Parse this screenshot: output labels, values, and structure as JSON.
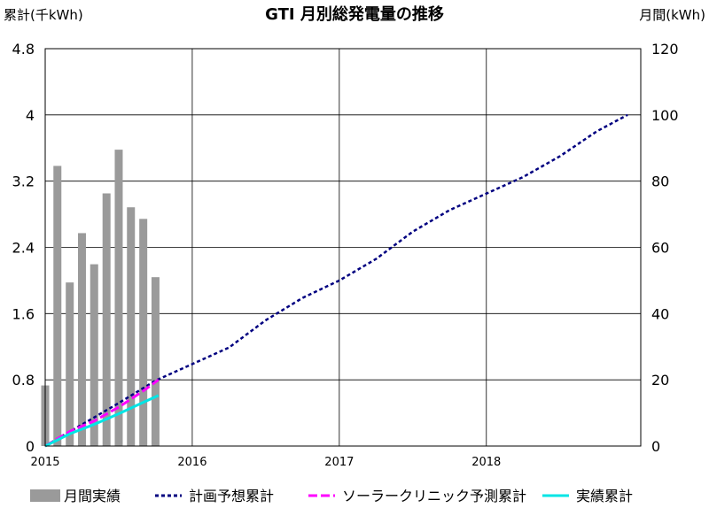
{
  "chart_data": {
    "type": "bar+line",
    "title": "GTI 月別総発電量の推移",
    "y_left_label": "累計(千kWh)",
    "y_right_label": "月間(kWh)",
    "x_ticks": [
      "2015",
      "2016",
      "2017",
      "2018"
    ],
    "x_range": [
      2015.0,
      2019.05
    ],
    "y_left_range": [
      0,
      4.8
    ],
    "y_right_range": [
      0,
      120
    ],
    "y_left_ticks": [
      "0",
      "0.8",
      "1.6",
      "2.4",
      "3.2",
      "4",
      "4.8"
    ],
    "y_right_ticks": [
      "0",
      "20",
      "40",
      "60",
      "80",
      "100",
      "120"
    ],
    "monthly_bars": {
      "name": "月間実績",
      "axis": "right",
      "x": [
        2015.0,
        2015.083,
        2015.167,
        2015.25,
        2015.333,
        2015.417,
        2015.5,
        2015.583,
        2015.667,
        2015.75
      ],
      "values": [
        18.3,
        84.6,
        49.4,
        64.3,
        54.9,
        76.3,
        89.5,
        72.1,
        68.6,
        51.0
      ]
    },
    "series": [
      {
        "name": "計画予想累計",
        "axis": "left",
        "color": "#000080",
        "style": "dotted",
        "x": [
          2015.0,
          2015.25,
          2015.5,
          2015.75,
          2016.0,
          2016.25,
          2016.5,
          2016.75,
          2017.0,
          2017.25,
          2017.5,
          2017.75,
          2018.0,
          2018.25,
          2018.5,
          2018.75,
          2018.96
        ],
        "y": [
          0.0,
          0.26,
          0.52,
          0.79,
          0.99,
          1.19,
          1.52,
          1.79,
          2.0,
          2.26,
          2.59,
          2.85,
          3.05,
          3.25,
          3.5,
          3.8,
          4.0
        ]
      },
      {
        "name": "ソーラークリニック予測累計",
        "axis": "left",
        "color": "#ff00ff",
        "style": "dashed",
        "x": [
          2015.0,
          2015.17,
          2015.33,
          2015.5,
          2015.67,
          2015.77
        ],
        "y": [
          0.0,
          0.18,
          0.3,
          0.47,
          0.67,
          0.8
        ]
      },
      {
        "name": "実績累計",
        "axis": "left",
        "color": "#00e5e5",
        "style": "solid",
        "x": [
          2015.0,
          2015.17,
          2015.33,
          2015.5,
          2015.67,
          2015.77
        ],
        "y": [
          0.0,
          0.15,
          0.26,
          0.39,
          0.53,
          0.61
        ]
      }
    ],
    "legend": [
      "月間実績",
      "計画予想累計",
      "ソーラークリニック予測累計",
      "実績累計"
    ],
    "legend_position": "bottom",
    "grid": true
  }
}
